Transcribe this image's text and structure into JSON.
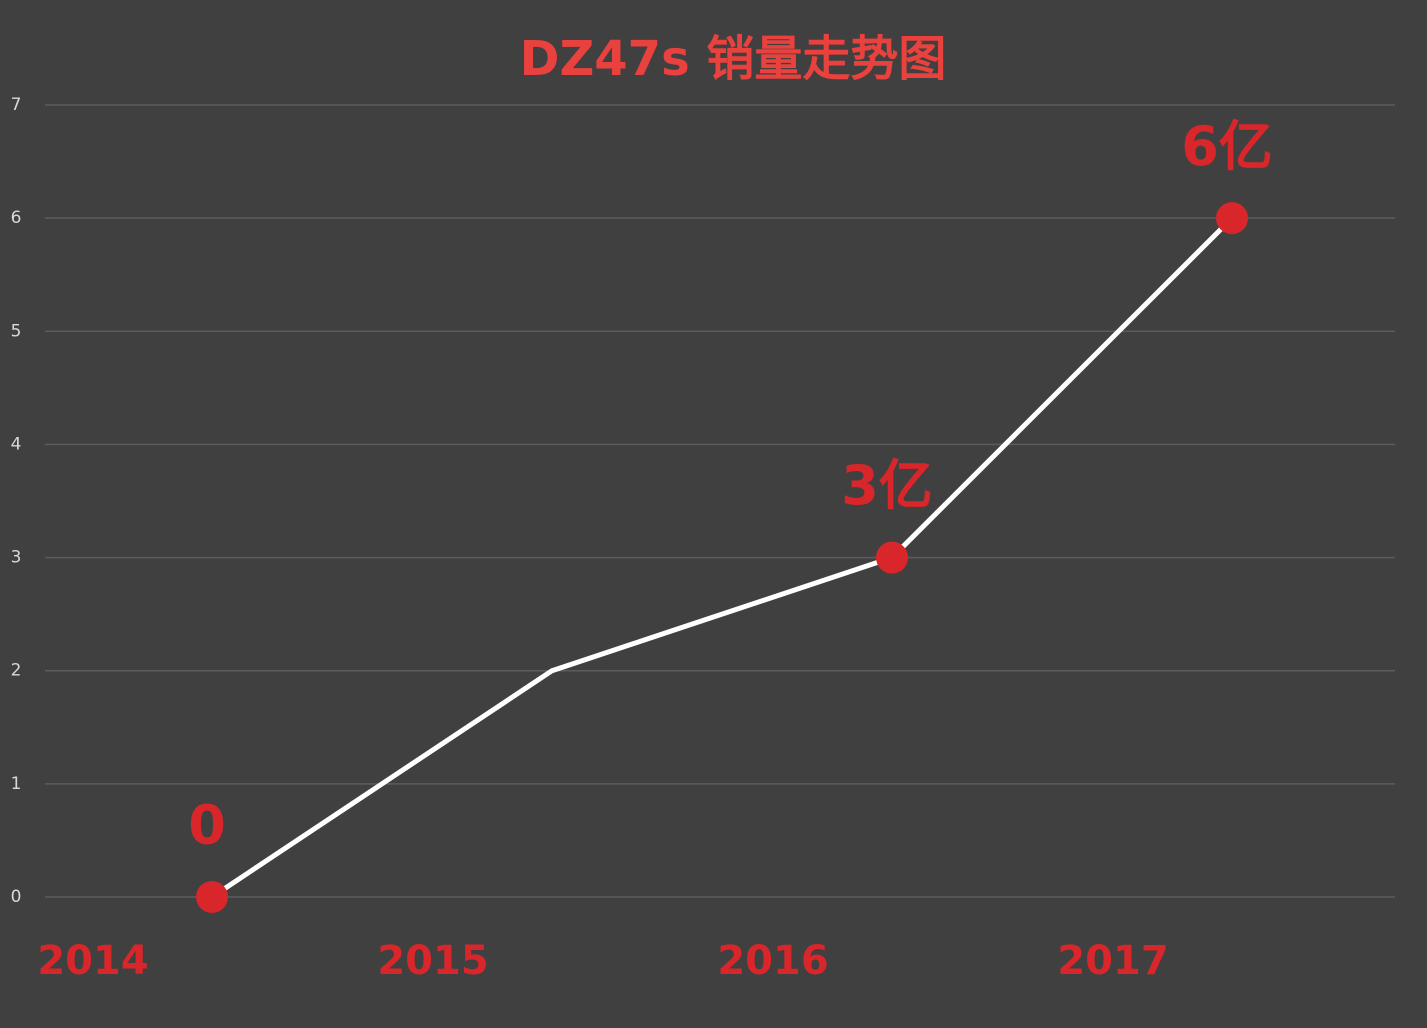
{
  "chart_data": {
    "type": "line",
    "title": "DZ47s 销量走势图",
    "categories": [
      "2014",
      "2015",
      "2016",
      "2017"
    ],
    "values": [
      0,
      2,
      3,
      6
    ],
    "value_labels": [
      "0",
      null,
      "3亿",
      "6亿"
    ],
    "color": "#ffffff",
    "marker_color": "#d9262a",
    "label_color": "#d9262a",
    "ylim": [
      0,
      7
    ],
    "yticks": [
      0,
      1,
      2,
      3,
      4,
      5,
      6,
      7
    ],
    "grid": true
  }
}
